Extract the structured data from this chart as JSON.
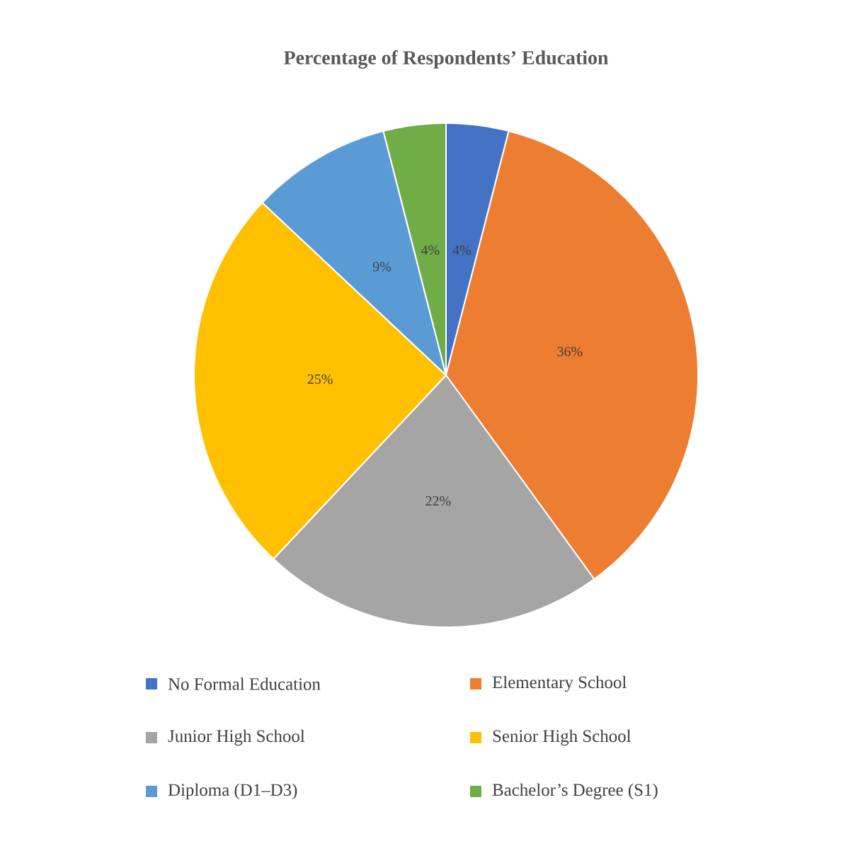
{
  "chart_data": {
    "type": "pie",
    "title": "Percentage of Respondents’ Education",
    "categories": [
      "No Formal Education",
      "Elementary School",
      "Junior High School",
      "Senior High School",
      "Diploma (D1–D3)",
      "Bachelor’s Degree (S1)"
    ],
    "values": [
      4,
      36,
      22,
      25,
      9,
      4
    ],
    "colors": [
      "#4472c4",
      "#ed7d31",
      "#a5a5a5",
      "#ffc000",
      "#5b9bd5",
      "#70ad47"
    ],
    "value_labels": [
      "4%",
      "36%",
      "22%",
      "25%",
      "9%",
      "4%"
    ],
    "legend": "bottom"
  }
}
